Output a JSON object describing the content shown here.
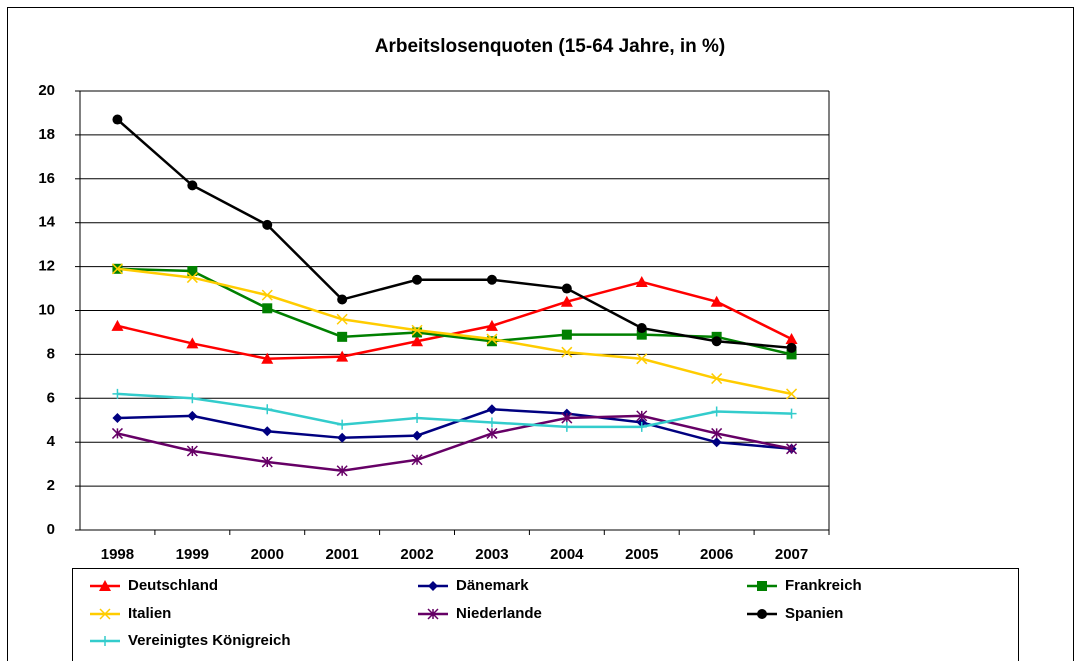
{
  "chart_data": {
    "type": "line",
    "title": "Arbeitslosenquoten (15-64 Jahre, in %)",
    "categories": [
      "1998",
      "1999",
      "2000",
      "2001",
      "2002",
      "2003",
      "2004",
      "2005",
      "2006",
      "2007"
    ],
    "ylim": [
      0,
      20
    ],
    "yticks": [
      0,
      2,
      4,
      6,
      8,
      10,
      12,
      14,
      16,
      18,
      20
    ],
    "grid": true,
    "series": [
      {
        "name": "Deutschland",
        "color": "#ff0000",
        "marker": "triangle",
        "values": [
          9.3,
          8.5,
          7.8,
          7.9,
          8.6,
          9.3,
          10.4,
          11.3,
          10.4,
          8.7
        ]
      },
      {
        "name": "Dänemark",
        "color": "#000080",
        "marker": "diamond",
        "values": [
          5.1,
          5.2,
          4.5,
          4.2,
          4.3,
          5.5,
          5.3,
          4.9,
          4.0,
          3.7
        ]
      },
      {
        "name": "Frankreich",
        "color": "#008000",
        "marker": "square",
        "values": [
          11.9,
          11.8,
          10.1,
          8.8,
          9.0,
          8.6,
          8.9,
          8.9,
          8.8,
          8.0
        ]
      },
      {
        "name": "Italien",
        "color": "#ffcc00",
        "marker": "x",
        "values": [
          11.9,
          11.5,
          10.7,
          9.6,
          9.1,
          8.7,
          8.1,
          7.8,
          6.9,
          6.2
        ]
      },
      {
        "name": "Niederlande",
        "color": "#660066",
        "marker": "star",
        "values": [
          4.4,
          3.6,
          3.1,
          2.7,
          3.2,
          4.4,
          5.1,
          5.2,
          4.4,
          3.7
        ]
      },
      {
        "name": "Spanien",
        "color": "#000000",
        "marker": "circle",
        "values": [
          18.7,
          15.7,
          13.9,
          10.5,
          11.4,
          11.4,
          11.0,
          9.2,
          8.6,
          8.3
        ]
      },
      {
        "name": "Vereinigtes Königreich",
        "color": "#33cccc",
        "marker": "plus",
        "values": [
          6.2,
          6.0,
          5.5,
          4.8,
          5.1,
          4.9,
          4.7,
          4.7,
          5.4,
          5.3
        ]
      }
    ]
  }
}
